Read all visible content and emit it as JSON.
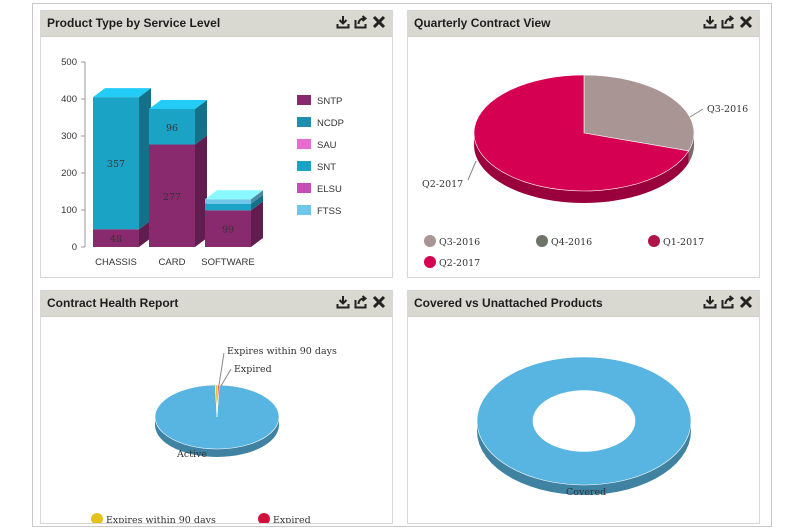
{
  "panels": {
    "p1": {
      "title": "Product Type by Service Level",
      "chart_data": {
        "type": "bar",
        "stacked": true,
        "categories": [
          "CHASSIS",
          "CARD",
          "SOFTWARE"
        ],
        "ylim": [
          0,
          500
        ],
        "yticks": [
          "0",
          "100",
          "200",
          "300",
          "400",
          "500"
        ],
        "series": [
          {
            "name": "SNTP",
            "color": "#8a2a6e",
            "values": [
              48,
              277,
              99
            ]
          },
          {
            "name": "NCDP",
            "color": "#1f8fb0",
            "values": [
              0,
              0,
              0
            ]
          },
          {
            "name": "SAU",
            "color": "#e86bd0",
            "values": [
              0,
              0,
              0
            ]
          },
          {
            "name": "SNT",
            "color": "#1ba3c5",
            "values": [
              357,
              96,
              18
            ]
          },
          {
            "name": "ELSU",
            "color": "#c64db4",
            "values": [
              0,
              0,
              0
            ]
          },
          {
            "name": "FTSS",
            "color": "#6ec7e8",
            "values": [
              0,
              0,
              12
            ]
          }
        ],
        "data_labels": {
          "CHASSIS": [
            "48",
            "357"
          ],
          "CARD": [
            "277",
            "96"
          ],
          "SOFTWARE": [
            "99"
          ]
        }
      }
    },
    "p2": {
      "title": "Quarterly Contract View",
      "chart_data": {
        "type": "pie",
        "labels": [
          "Q3-2016",
          "Q4-2016",
          "Q1-2017",
          "Q2-2017"
        ],
        "values": [
          30,
          0,
          0,
          70
        ],
        "colors": [
          "#a89594",
          "#6e7468",
          "#b01547",
          "#d60052"
        ],
        "legend_position": "bottom"
      }
    },
    "p3": {
      "title": "Contract Health Report",
      "chart_data": {
        "type": "pie",
        "labels": [
          "Active",
          "Expires within 90 days",
          "Expired"
        ],
        "values": [
          99,
          0.6,
          0.4
        ],
        "colors": [
          "#58b4e0",
          "#e5c21a",
          "#d0103a"
        ],
        "legend_position": "bottom",
        "legend_entries": [
          "Expires within 90 days",
          "Expired"
        ]
      }
    },
    "p4": {
      "title": "Covered vs Unattached Products",
      "chart_data": {
        "type": "pie",
        "donut": true,
        "labels": [
          "Covered"
        ],
        "values": [
          100
        ],
        "colors": [
          "#58b4e0"
        ]
      }
    }
  },
  "tools": {
    "download": "download-icon",
    "export": "export-icon",
    "close": "close-icon"
  }
}
